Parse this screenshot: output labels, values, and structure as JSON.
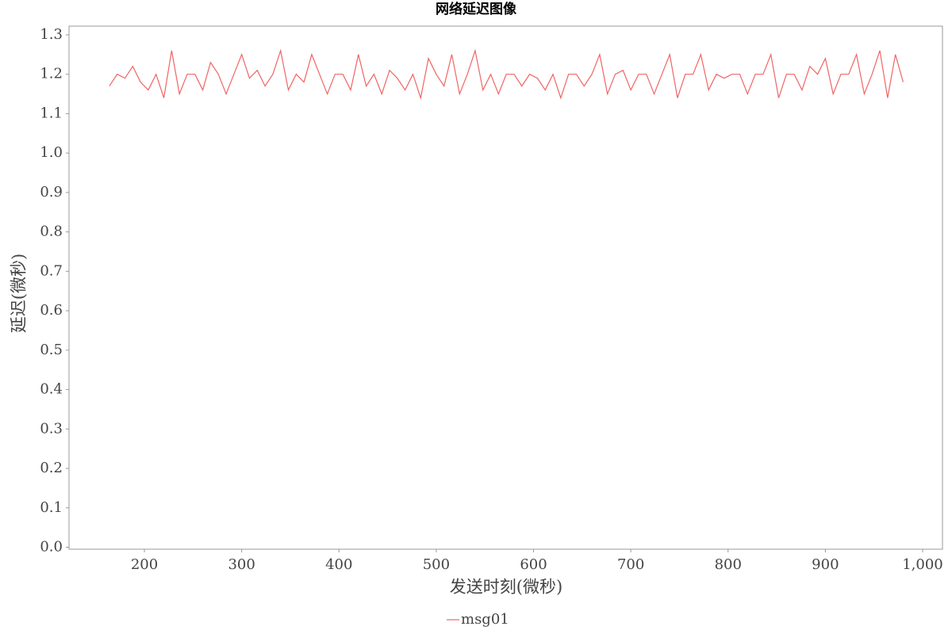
{
  "chart_data": {
    "type": "line",
    "title": "网络延迟图像",
    "xlabel": "发送时刻(微秒)",
    "ylabel": "延迟(微秒)",
    "x": [
      164,
      172,
      180,
      188,
      196,
      204,
      212,
      220,
      228,
      236,
      244,
      252,
      260,
      268,
      276,
      284,
      292,
      300,
      308,
      316,
      324,
      332,
      340,
      348,
      356,
      364,
      372,
      380,
      388,
      396,
      404,
      412,
      420,
      428,
      436,
      444,
      452,
      460,
      468,
      476,
      484,
      492,
      500,
      508,
      516,
      524,
      532,
      540,
      548,
      556,
      564,
      572,
      580,
      588,
      596,
      604,
      612,
      620,
      628,
      636,
      644,
      652,
      660,
      668,
      676,
      684,
      692,
      700,
      708,
      716,
      724,
      732,
      740,
      748,
      756,
      764,
      772,
      780,
      788,
      796,
      804,
      812,
      820,
      828,
      836,
      844,
      852,
      860,
      868,
      876,
      884,
      892,
      900,
      908,
      916,
      924,
      932,
      940,
      948,
      956,
      964,
      972,
      980
    ],
    "series": [
      {
        "name": "msg01",
        "color": "#f06464",
        "values": [
          1.17,
          1.2,
          1.19,
          1.22,
          1.18,
          1.16,
          1.2,
          1.14,
          1.26,
          1.15,
          1.2,
          1.2,
          1.16,
          1.23,
          1.2,
          1.15,
          1.2,
          1.25,
          1.19,
          1.21,
          1.17,
          1.2,
          1.26,
          1.16,
          1.2,
          1.18,
          1.25,
          1.2,
          1.15,
          1.2,
          1.2,
          1.16,
          1.25,
          1.17,
          1.2,
          1.15,
          1.21,
          1.19,
          1.16,
          1.2,
          1.14,
          1.24,
          1.2,
          1.17,
          1.25,
          1.15,
          1.2,
          1.26,
          1.16,
          1.2,
          1.15,
          1.2,
          1.2,
          1.17,
          1.2,
          1.19,
          1.16,
          1.2,
          1.14,
          1.2,
          1.2,
          1.17,
          1.2,
          1.25,
          1.15,
          1.2,
          1.21,
          1.16,
          1.2,
          1.2,
          1.15,
          1.2,
          1.25,
          1.14,
          1.2,
          1.2,
          1.25,
          1.16,
          1.2,
          1.19,
          1.2,
          1.2,
          1.15,
          1.2,
          1.2,
          1.25,
          1.14,
          1.2,
          1.2,
          1.16,
          1.22,
          1.2,
          1.24,
          1.15,
          1.2,
          1.2,
          1.25,
          1.15,
          1.2,
          1.26,
          1.14,
          1.25,
          1.18
        ]
      }
    ],
    "xlim": [
      122.5,
      1020.4
    ],
    "ylim": [
      -0.005,
      1.322
    ],
    "xticks": [
      200,
      300,
      400,
      500,
      600,
      700,
      800,
      900,
      {
        "value": 1000,
        "label": "1,000"
      }
    ],
    "yticks": [
      {
        "value": 0,
        "label": "0.0"
      },
      0.1,
      0.2,
      0.3,
      0.4,
      0.5,
      0.6,
      0.7,
      0.8,
      0.9,
      {
        "value": 1,
        "label": "1.0"
      },
      1.1,
      1.2,
      1.3
    ],
    "legend": "bottom"
  }
}
